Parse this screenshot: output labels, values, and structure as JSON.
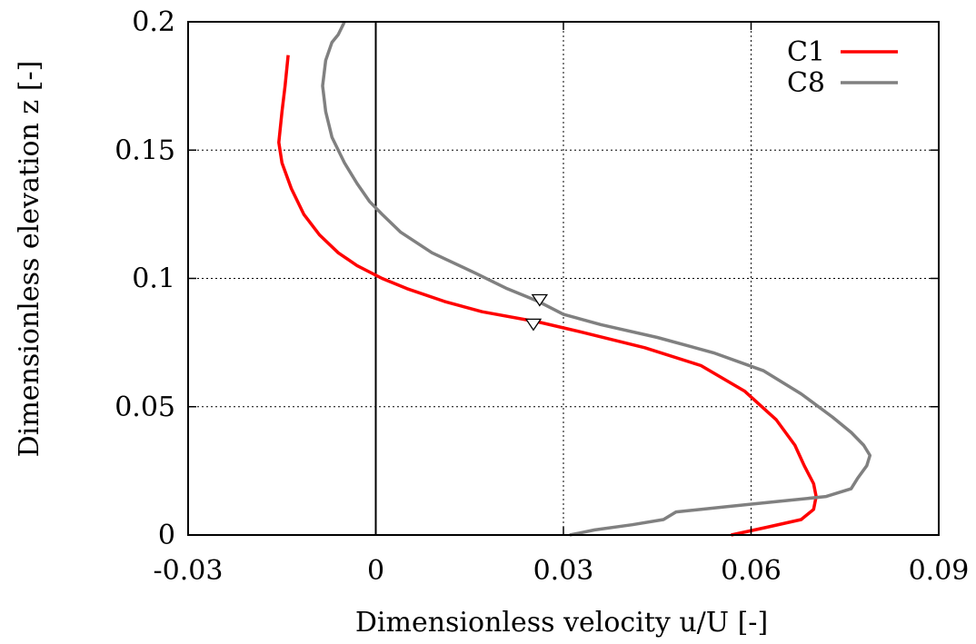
{
  "chart_data": {
    "type": "line",
    "xlabel": "Dimensionless velocity u/U [-]",
    "ylabel": "Dimensionless elevation z [-]",
    "xlim": [
      -0.03,
      0.09
    ],
    "ylim": [
      0,
      0.2
    ],
    "x_ticks": [
      "-0.03",
      "0",
      "0.03",
      "0.06",
      "0.09"
    ],
    "y_ticks": [
      "0",
      "0.05",
      "0.1",
      "0.15",
      "0.2"
    ],
    "grid": true,
    "legend_position": "top-right",
    "series": [
      {
        "name": "C1",
        "color": "#ff0000",
        "points": [
          [
            0.0568,
            0.0
          ],
          [
            0.0625,
            0.003
          ],
          [
            0.068,
            0.006
          ],
          [
            0.07,
            0.01
          ],
          [
            0.0704,
            0.015
          ],
          [
            0.07,
            0.02
          ],
          [
            0.0685,
            0.027
          ],
          [
            0.067,
            0.035
          ],
          [
            0.064,
            0.045
          ],
          [
            0.059,
            0.056
          ],
          [
            0.052,
            0.066
          ],
          [
            0.043,
            0.073
          ],
          [
            0.033,
            0.079
          ],
          [
            0.026,
            0.083
          ],
          [
            0.017,
            0.087
          ],
          [
            0.011,
            0.091
          ],
          [
            0.005,
            0.096
          ],
          [
            0.001,
            0.1
          ],
          [
            -0.003,
            0.105
          ],
          [
            -0.006,
            0.11
          ],
          [
            -0.009,
            0.117
          ],
          [
            -0.0115,
            0.125
          ],
          [
            -0.0135,
            0.135
          ],
          [
            -0.015,
            0.145
          ],
          [
            -0.0155,
            0.153
          ],
          [
            -0.015,
            0.165
          ],
          [
            -0.0145,
            0.175
          ],
          [
            -0.014,
            0.187
          ]
        ]
      },
      {
        "name": "C8",
        "color": "#808080",
        "points": [
          [
            0.031,
            0.0
          ],
          [
            0.035,
            0.002
          ],
          [
            0.041,
            0.004
          ],
          [
            0.046,
            0.006
          ],
          [
            0.048,
            0.009
          ],
          [
            0.056,
            0.011
          ],
          [
            0.064,
            0.013
          ],
          [
            0.072,
            0.015
          ],
          [
            0.076,
            0.018
          ],
          [
            0.077,
            0.022
          ],
          [
            0.0785,
            0.027
          ],
          [
            0.079,
            0.031
          ],
          [
            0.078,
            0.035
          ],
          [
            0.076,
            0.04
          ],
          [
            0.073,
            0.046
          ],
          [
            0.068,
            0.055
          ],
          [
            0.062,
            0.064
          ],
          [
            0.054,
            0.071
          ],
          [
            0.045,
            0.077
          ],
          [
            0.036,
            0.082
          ],
          [
            0.03,
            0.086
          ],
          [
            0.026,
            0.091
          ],
          [
            0.021,
            0.096
          ],
          [
            0.016,
            0.102
          ],
          [
            0.009,
            0.11
          ],
          [
            0.004,
            0.118
          ],
          [
            0.001,
            0.125
          ],
          [
            -0.001,
            0.13
          ],
          [
            -0.003,
            0.137
          ],
          [
            -0.005,
            0.145
          ],
          [
            -0.007,
            0.155
          ],
          [
            -0.008,
            0.165
          ],
          [
            -0.0085,
            0.175
          ],
          [
            -0.008,
            0.185
          ],
          [
            -0.007,
            0.192
          ],
          [
            -0.006,
            0.195
          ],
          [
            -0.005,
            0.2
          ]
        ]
      }
    ],
    "markers": [
      {
        "symbol": "triangle-down",
        "x": 0.0262,
        "y": 0.0915
      },
      {
        "symbol": "triangle-down",
        "x": 0.0252,
        "y": 0.082
      }
    ]
  }
}
